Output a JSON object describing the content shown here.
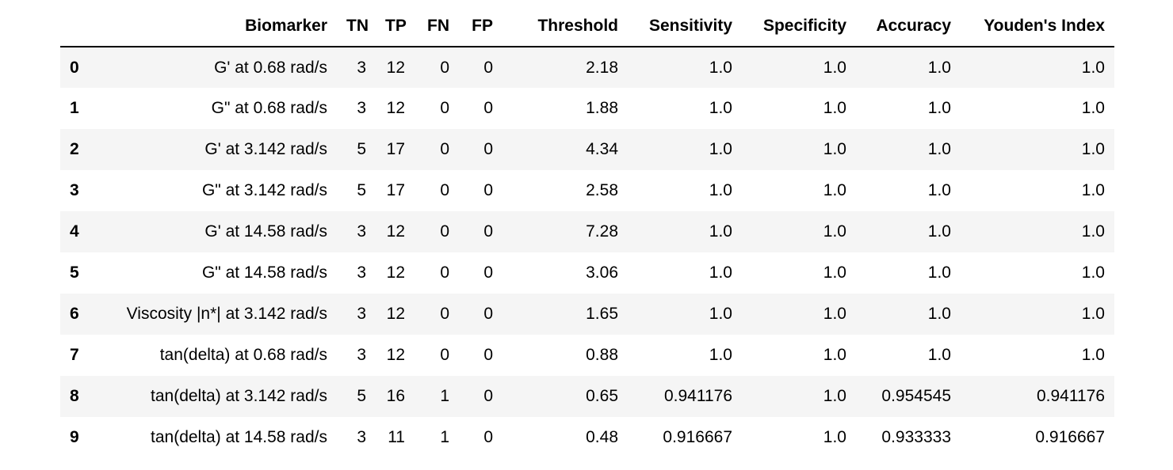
{
  "table": {
    "columns": [
      "",
      "Biomarker",
      "TN",
      "TP",
      "FN",
      "FP",
      "Threshold",
      "Sensitivity",
      "Specificity",
      "Accuracy",
      "Youden's Index"
    ],
    "rows": [
      {
        "index": "0",
        "biomarker": "G' at 0.68 rad/s",
        "tn": "3",
        "tp": "12",
        "fn": "0",
        "fp": "0",
        "threshold": "2.18",
        "sensitivity": "1.0",
        "specificity": "1.0",
        "accuracy": "1.0",
        "youden": "1.0"
      },
      {
        "index": "1",
        "biomarker": "G\" at 0.68 rad/s",
        "tn": "3",
        "tp": "12",
        "fn": "0",
        "fp": "0",
        "threshold": "1.88",
        "sensitivity": "1.0",
        "specificity": "1.0",
        "accuracy": "1.0",
        "youden": "1.0"
      },
      {
        "index": "2",
        "biomarker": "G' at 3.142 rad/s",
        "tn": "5",
        "tp": "17",
        "fn": "0",
        "fp": "0",
        "threshold": "4.34",
        "sensitivity": "1.0",
        "specificity": "1.0",
        "accuracy": "1.0",
        "youden": "1.0"
      },
      {
        "index": "3",
        "biomarker": "G\" at 3.142 rad/s",
        "tn": "5",
        "tp": "17",
        "fn": "0",
        "fp": "0",
        "threshold": "2.58",
        "sensitivity": "1.0",
        "specificity": "1.0",
        "accuracy": "1.0",
        "youden": "1.0"
      },
      {
        "index": "4",
        "biomarker": "G' at 14.58 rad/s",
        "tn": "3",
        "tp": "12",
        "fn": "0",
        "fp": "0",
        "threshold": "7.28",
        "sensitivity": "1.0",
        "specificity": "1.0",
        "accuracy": "1.0",
        "youden": "1.0"
      },
      {
        "index": "5",
        "biomarker": "G\" at 14.58 rad/s",
        "tn": "3",
        "tp": "12",
        "fn": "0",
        "fp": "0",
        "threshold": "3.06",
        "sensitivity": "1.0",
        "specificity": "1.0",
        "accuracy": "1.0",
        "youden": "1.0"
      },
      {
        "index": "6",
        "biomarker": "Viscosity |n*| at 3.142 rad/s",
        "tn": "3",
        "tp": "12",
        "fn": "0",
        "fp": "0",
        "threshold": "1.65",
        "sensitivity": "1.0",
        "specificity": "1.0",
        "accuracy": "1.0",
        "youden": "1.0"
      },
      {
        "index": "7",
        "biomarker": "tan(delta) at 0.68 rad/s",
        "tn": "3",
        "tp": "12",
        "fn": "0",
        "fp": "0",
        "threshold": "0.88",
        "sensitivity": "1.0",
        "specificity": "1.0",
        "accuracy": "1.0",
        "youden": "1.0"
      },
      {
        "index": "8",
        "biomarker": "tan(delta) at 3.142 rad/s",
        "tn": "5",
        "tp": "16",
        "fn": "1",
        "fp": "0",
        "threshold": "0.65",
        "sensitivity": "0.941176",
        "specificity": "1.0",
        "accuracy": "0.954545",
        "youden": "0.941176"
      },
      {
        "index": "9",
        "biomarker": "tan(delta) at 14.58 rad/s",
        "tn": "3",
        "tp": "11",
        "fn": "1",
        "fp": "0",
        "threshold": "0.48",
        "sensitivity": "0.916667",
        "specificity": "1.0",
        "accuracy": "0.933333",
        "youden": "0.916667"
      }
    ]
  }
}
